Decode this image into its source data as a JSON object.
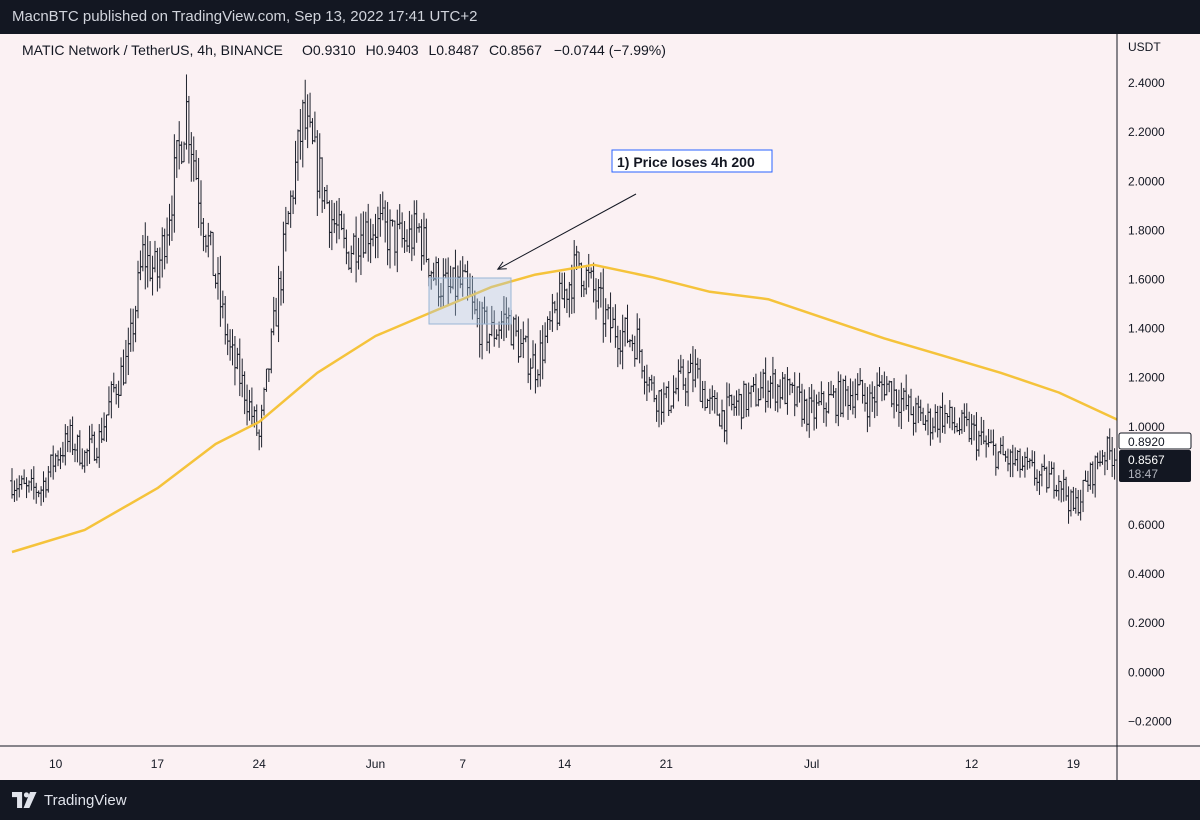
{
  "header": {
    "published_text": "MacnBTC published on TradingView.com, Sep 13, 2022 17:41 UTC+2"
  },
  "legend": {
    "symbol": "MATIC Network / TetherUS, 4h, BINANCE",
    "open_label": "O",
    "open": "0.9310",
    "high_label": "H",
    "high": "0.9403",
    "low_label": "L",
    "low": "0.8487",
    "close_label": "C",
    "close": "0.8567",
    "change": "−0.0744 (−7.99%)"
  },
  "footer": {
    "brand": "TradingView"
  },
  "colors": {
    "background": "#fbf1f3",
    "candles": "#1e222d",
    "ma": "#f5c33b",
    "annotation_border": "#2962ff"
  },
  "chart_data": {
    "type": "line",
    "title": "",
    "xlabel": "",
    "ylabel": "",
    "y_unit": "USDT",
    "xlim": [
      "2022-05-07",
      "2022-07-22"
    ],
    "ylim": [
      -0.3,
      2.6
    ],
    "x_ticks": [
      {
        "label": "10",
        "date": "2022-05-10"
      },
      {
        "label": "17",
        "date": "2022-05-17"
      },
      {
        "label": "24",
        "date": "2022-05-24"
      },
      {
        "label": "Jun",
        "date": "2022-06-01"
      },
      {
        "label": "7",
        "date": "2022-06-07"
      },
      {
        "label": "14",
        "date": "2022-06-14"
      },
      {
        "label": "21",
        "date": "2022-06-21"
      },
      {
        "label": "Jul",
        "date": "2022-07-01"
      },
      {
        "label": "12",
        "date": "2022-07-12"
      },
      {
        "label": "19",
        "date": "2022-07-19"
      }
    ],
    "y_ticks": [
      "2.4000",
      "2.2000",
      "2.0000",
      "1.8000",
      "1.6000",
      "1.4000",
      "1.2000",
      "1.0000",
      "0.8000",
      "0.6000",
      "0.4000",
      "0.2000",
      "0.0000",
      "−0.2000"
    ],
    "price_series": {
      "x": [
        "2022-05-07",
        "2022-05-08",
        "2022-05-09",
        "2022-05-10",
        "2022-05-11",
        "2022-05-12",
        "2022-05-13",
        "2022-05-14",
        "2022-05-15",
        "2022-05-16",
        "2022-05-17",
        "2022-05-18",
        "2022-05-19",
        "2022-05-20",
        "2022-05-21",
        "2022-05-22",
        "2022-05-23",
        "2022-05-24",
        "2022-05-25",
        "2022-05-26",
        "2022-05-27",
        "2022-05-28",
        "2022-05-29",
        "2022-05-30",
        "2022-05-31",
        "2022-06-01",
        "2022-06-02",
        "2022-06-03",
        "2022-06-04",
        "2022-06-05",
        "2022-06-06",
        "2022-06-07",
        "2022-06-08",
        "2022-06-09",
        "2022-06-10",
        "2022-06-11",
        "2022-06-12",
        "2022-06-13",
        "2022-06-14",
        "2022-06-15",
        "2022-06-16",
        "2022-06-17",
        "2022-06-18",
        "2022-06-19",
        "2022-06-20",
        "2022-06-21",
        "2022-06-22",
        "2022-06-23",
        "2022-06-24",
        "2022-06-25",
        "2022-06-26",
        "2022-06-27",
        "2022-06-28",
        "2022-06-29",
        "2022-06-30",
        "2022-07-01",
        "2022-07-02",
        "2022-07-03",
        "2022-07-04",
        "2022-07-05",
        "2022-07-06",
        "2022-07-07",
        "2022-07-08",
        "2022-07-09",
        "2022-07-10",
        "2022-07-11",
        "2022-07-12",
        "2022-07-13",
        "2022-07-14",
        "2022-07-15",
        "2022-07-16",
        "2022-07-17",
        "2022-07-18",
        "2022-07-19",
        "2022-07-20",
        "2022-07-21",
        "2022-07-22"
      ],
      "values": [
        0.78,
        0.74,
        0.75,
        0.88,
        0.95,
        0.88,
        0.95,
        1.15,
        1.28,
        1.7,
        1.62,
        1.95,
        2.3,
        1.9,
        1.6,
        1.3,
        1.15,
        0.95,
        1.4,
        1.85,
        2.25,
        2.05,
        1.85,
        1.7,
        1.8,
        1.82,
        1.78,
        1.75,
        1.8,
        1.62,
        1.55,
        1.58,
        1.42,
        1.38,
        1.45,
        1.32,
        1.25,
        1.4,
        1.55,
        1.67,
        1.55,
        1.42,
        1.38,
        1.35,
        1.15,
        1.1,
        1.18,
        1.22,
        1.08,
        1.05,
        1.1,
        1.12,
        1.18,
        1.15,
        1.1,
        1.05,
        1.1,
        1.12,
        1.15,
        1.1,
        1.18,
        1.12,
        1.05,
        1.02,
        1.05,
        1.0,
        0.98,
        0.92,
        0.88,
        0.85,
        0.82,
        0.78,
        0.8,
        0.66,
        0.78,
        0.9,
        0.89
      ]
    },
    "series": [
      {
        "x": [
          "2022-05-07",
          "2022-05-12",
          "2022-05-17",
          "2022-05-21",
          "2022-05-24",
          "2022-05-28",
          "2022-06-01",
          "2022-06-05",
          "2022-06-09",
          "2022-06-12",
          "2022-06-16",
          "2022-06-20",
          "2022-06-24",
          "2022-06-28",
          "2022-07-02",
          "2022-07-06",
          "2022-07-10",
          "2022-07-14",
          "2022-07-18",
          "2022-07-22"
        ],
        "values": [
          0.49,
          0.58,
          0.75,
          0.93,
          1.02,
          1.22,
          1.37,
          1.47,
          1.57,
          1.62,
          1.66,
          1.61,
          1.55,
          1.52,
          1.44,
          1.36,
          1.29,
          1.22,
          1.14,
          1.03
        ]
      }
    ],
    "annotations": [
      {
        "text": "1) Price loses 4h 200",
        "target_date": "2022-06-09",
        "target_value": 1.63
      }
    ],
    "current_price_labels": [
      {
        "value": "0.8920"
      },
      {
        "value": "0.8567",
        "countdown": "18:47"
      }
    ],
    "grid": false,
    "legend_position": "top-left"
  }
}
